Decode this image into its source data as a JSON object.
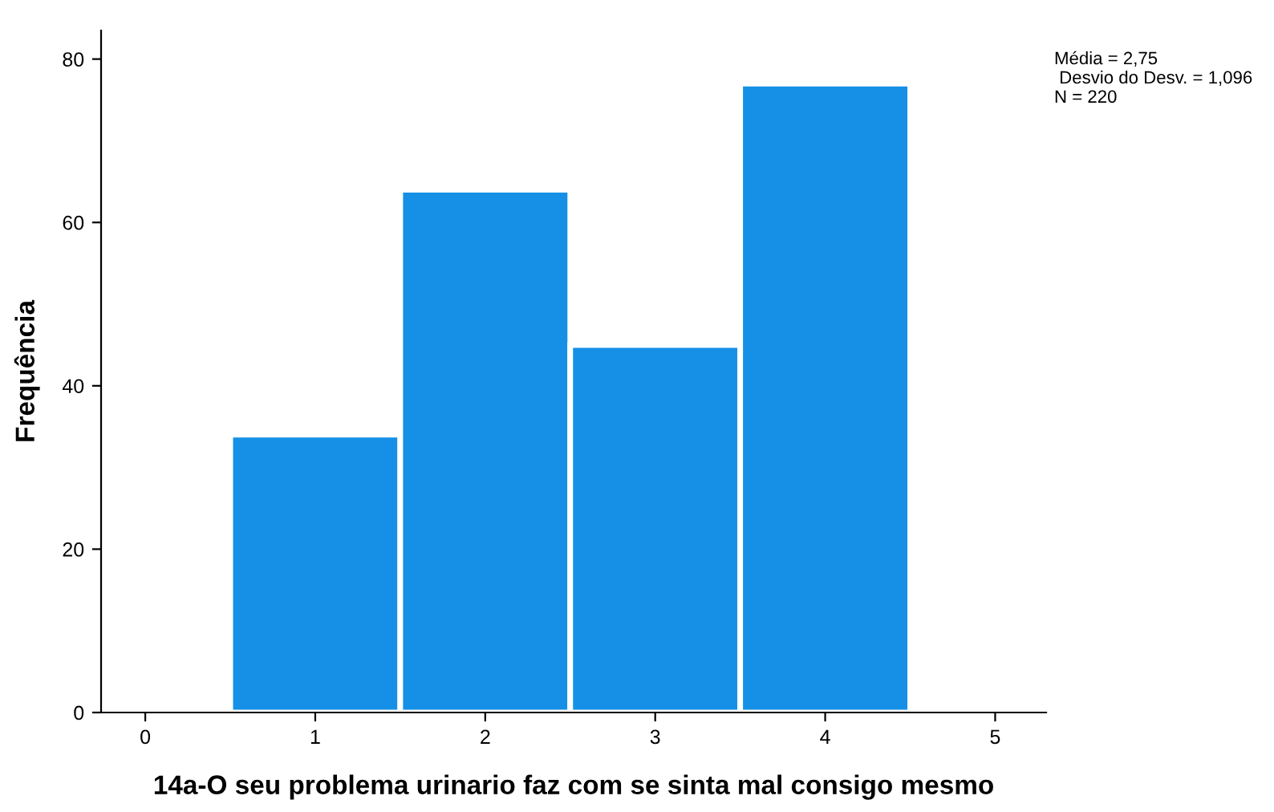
{
  "chart_data": {
    "type": "histogram",
    "xlabel": "14a-O seu problema urinario faz com se sinta mal consigo mesmo",
    "ylabel": "Frequência",
    "bins": [
      0.5,
      1.5,
      2.5,
      3.5,
      4.5
    ],
    "values": [
      34,
      64,
      45,
      77
    ],
    "color": "#1590e6",
    "xlim": [
      -0.26,
      5.3
    ],
    "xticks": [
      0,
      1,
      2,
      3,
      4,
      5
    ],
    "ylim": [
      0,
      83.5
    ],
    "yticks": [
      0,
      20,
      40,
      60,
      80
    ],
    "grid": false,
    "annotations": [
      "Média = 2,75\n Desvio do Desv. = 1,096\nN = 220"
    ]
  }
}
